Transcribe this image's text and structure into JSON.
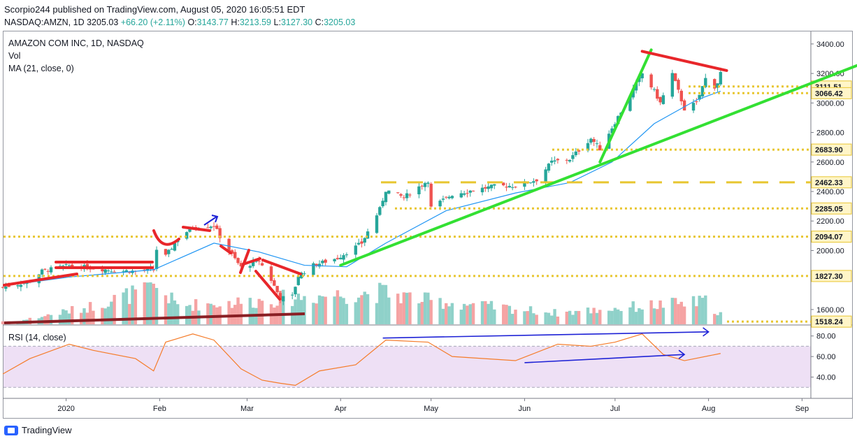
{
  "header": {
    "line1": "Scorpio244 published on TradingView.com, August 05, 2020 16:05:51 EDT",
    "symbol": "NASDAQ:AMZN, 1D",
    "last": "3205.03",
    "change": "+66.20 (+2.11%)",
    "o_label": "O:",
    "o": "3143.77",
    "h_label": "H:",
    "h": "3213.59",
    "l_label": "L:",
    "l": "3127.30",
    "c_label": "C:",
    "c": "3205.03"
  },
  "legend": {
    "title": "AMAZON COM INC, 1D, NASDAQ",
    "vol": "Vol",
    "ma": "MA (21, close, 0)",
    "rsi": "RSI (14, close)"
  },
  "footer": {
    "brand": "TradingView"
  },
  "colors": {
    "up": "#26a69a",
    "down": "#ef5350",
    "ma": "#2196f3",
    "green_line": "#33e033",
    "red_line": "#e8262a",
    "blue_line": "#1e22d6",
    "level": "#e8c630",
    "rsi": "#f57c2a",
    "rsi_band": "#eee0f5"
  },
  "chart_data": [
    {
      "type": "candlestick",
      "title": "AMAZON COM INC, 1D, NASDAQ",
      "ylim": [
        1500,
        3480
      ],
      "y_ticks": [
        "3400.00",
        "3200.00",
        "3000.00",
        "2800.00",
        "2600.00",
        "2400.00",
        "2200.00",
        "2000.00",
        "1600.00"
      ],
      "x_labels": [
        "2020",
        "Feb",
        "Mar",
        "Apr",
        "May",
        "Jun",
        "Jul",
        "Aug",
        "Sep"
      ],
      "level_labels": [
        "3111.51",
        "3066.42",
        "2683.90",
        "2462.33",
        "2285.05",
        "2094.07",
        "1827.30",
        "1518.24"
      ],
      "close_path": [
        [
          "2019-12-11",
          1751
        ],
        [
          "2019-12-20",
          1790
        ],
        [
          "2019-12-24",
          1860
        ],
        [
          "2020-01-02",
          1898
        ],
        [
          "2020-01-10",
          1880
        ],
        [
          "2020-01-17",
          1865
        ],
        [
          "2020-01-24",
          1860
        ],
        [
          "2020-01-30",
          1870
        ],
        [
          "2020-01-31",
          2008
        ],
        [
          "2020-02-03",
          1960
        ],
        [
          "2020-02-07",
          2080
        ],
        [
          "2020-02-12",
          2160
        ],
        [
          "2020-02-19",
          2170
        ],
        [
          "2020-02-21",
          2095
        ],
        [
          "2020-02-25",
          1970
        ],
        [
          "2020-02-28",
          1885
        ],
        [
          "2020-03-05",
          1930
        ],
        [
          "2020-03-09",
          1800
        ],
        [
          "2020-03-12",
          1676
        ],
        [
          "2020-03-16",
          1690
        ],
        [
          "2020-03-18",
          1830
        ],
        [
          "2020-03-23",
          1900
        ],
        [
          "2020-03-31",
          1950
        ],
        [
          "2020-04-08",
          2050
        ],
        [
          "2020-04-14",
          2280
        ],
        [
          "2020-04-16",
          2410
        ],
        [
          "2020-04-22",
          2360
        ],
        [
          "2020-04-30",
          2475
        ],
        [
          "2020-05-01",
          2290
        ],
        [
          "2020-05-08",
          2380
        ],
        [
          "2020-05-15",
          2410
        ],
        [
          "2020-05-22",
          2435
        ],
        [
          "2020-05-29",
          2440
        ],
        [
          "2020-06-05",
          2480
        ],
        [
          "2020-06-10",
          2600
        ],
        [
          "2020-06-16",
          2620
        ],
        [
          "2020-06-23",
          2760
        ],
        [
          "2020-06-26",
          2690
        ],
        [
          "2020-07-01",
          2870
        ],
        [
          "2020-07-06",
          3050
        ],
        [
          "2020-07-10",
          3200
        ],
        [
          "2020-07-14",
          3080
        ],
        [
          "2020-07-16",
          3000
        ],
        [
          "2020-07-20",
          3197
        ],
        [
          "2020-07-24",
          2960
        ],
        [
          "2020-07-28",
          3000
        ],
        [
          "2020-07-31",
          3165
        ],
        [
          "2020-08-03",
          3111
        ],
        [
          "2020-08-04",
          3138
        ],
        [
          "2020-08-05",
          3205
        ]
      ],
      "ma21_path": [
        [
          "2019-12-11",
          1760
        ],
        [
          "2020-01-02",
          1820
        ],
        [
          "2020-01-30",
          1870
        ],
        [
          "2020-02-19",
          2050
        ],
        [
          "2020-03-05",
          1990
        ],
        [
          "2020-03-20",
          1900
        ],
        [
          "2020-04-03",
          1890
        ],
        [
          "2020-04-16",
          2050
        ],
        [
          "2020-05-06",
          2270
        ],
        [
          "2020-05-29",
          2390
        ],
        [
          "2020-06-16",
          2460
        ],
        [
          "2020-06-30",
          2600
        ],
        [
          "2020-07-14",
          2860
        ],
        [
          "2020-07-28",
          3020
        ],
        [
          "2020-08-05",
          3080
        ]
      ],
      "volume_relative": [
        [
          "2019-12-16",
          0.08
        ],
        [
          "2020-01-08",
          0.45
        ],
        [
          "2020-01-31",
          1.0
        ],
        [
          "2020-02-07",
          0.5
        ],
        [
          "2020-03-02",
          0.6
        ],
        [
          "2020-03-17",
          0.72
        ],
        [
          "2020-04-15",
          0.85
        ],
        [
          "2020-05-01",
          0.62
        ],
        [
          "2020-06-12",
          0.3
        ],
        [
          "2020-07-13",
          0.5
        ],
        [
          "2020-07-31",
          0.6
        ],
        [
          "2020-08-05",
          0.28
        ]
      ],
      "trendlines_green": [
        [
          [
            "2020-04-01",
            1900
          ],
          [
            "2020-09-20",
            3260
          ]
        ],
        [
          [
            "2020-06-26",
            2600
          ],
          [
            "2020-07-13",
            3360
          ]
        ]
      ],
      "trendlines_red": [
        [
          [
            "2020-07-10",
            3350
          ],
          [
            "2020-08-07",
            3220
          ]
        ]
      ],
      "level_lines": [
        3111.51,
        3066.42,
        2683.9,
        2462.33,
        2285.05,
        2094.07,
        1827.3,
        1518.24
      ]
    },
    {
      "type": "line",
      "title": "RSI (14, close)",
      "ylim": [
        20,
        90
      ],
      "y_ticks": [
        "80.00",
        "60.00",
        "40.00"
      ],
      "band": [
        30,
        70
      ],
      "rsi_path": [
        [
          "2019-12-11",
          43
        ],
        [
          "2019-12-20",
          58
        ],
        [
          "2020-01-02",
          72
        ],
        [
          "2020-01-10",
          66
        ],
        [
          "2020-01-24",
          58
        ],
        [
          "2020-01-30",
          46
        ],
        [
          "2020-02-03",
          74
        ],
        [
          "2020-02-12",
          82
        ],
        [
          "2020-02-19",
          76
        ],
        [
          "2020-02-28",
          48
        ],
        [
          "2020-03-06",
          37
        ],
        [
          "2020-03-12",
          34
        ],
        [
          "2020-03-17",
          32
        ],
        [
          "2020-03-25",
          46
        ],
        [
          "2020-04-06",
          52
        ],
        [
          "2020-04-16",
          76
        ],
        [
          "2020-04-30",
          74
        ],
        [
          "2020-05-08",
          60
        ],
        [
          "2020-05-29",
          56
        ],
        [
          "2020-06-12",
          72
        ],
        [
          "2020-06-23",
          70
        ],
        [
          "2020-07-01",
          74
        ],
        [
          "2020-07-10",
          82
        ],
        [
          "2020-07-17",
          62
        ],
        [
          "2020-07-24",
          56
        ],
        [
          "2020-08-05",
          63
        ]
      ],
      "divergence_lines": [
        [
          [
            "2020-04-15",
            78
          ],
          [
            "2020-08-01",
            84
          ]
        ],
        [
          [
            "2020-06-01",
            54
          ],
          [
            "2020-07-24",
            62
          ]
        ]
      ]
    }
  ]
}
